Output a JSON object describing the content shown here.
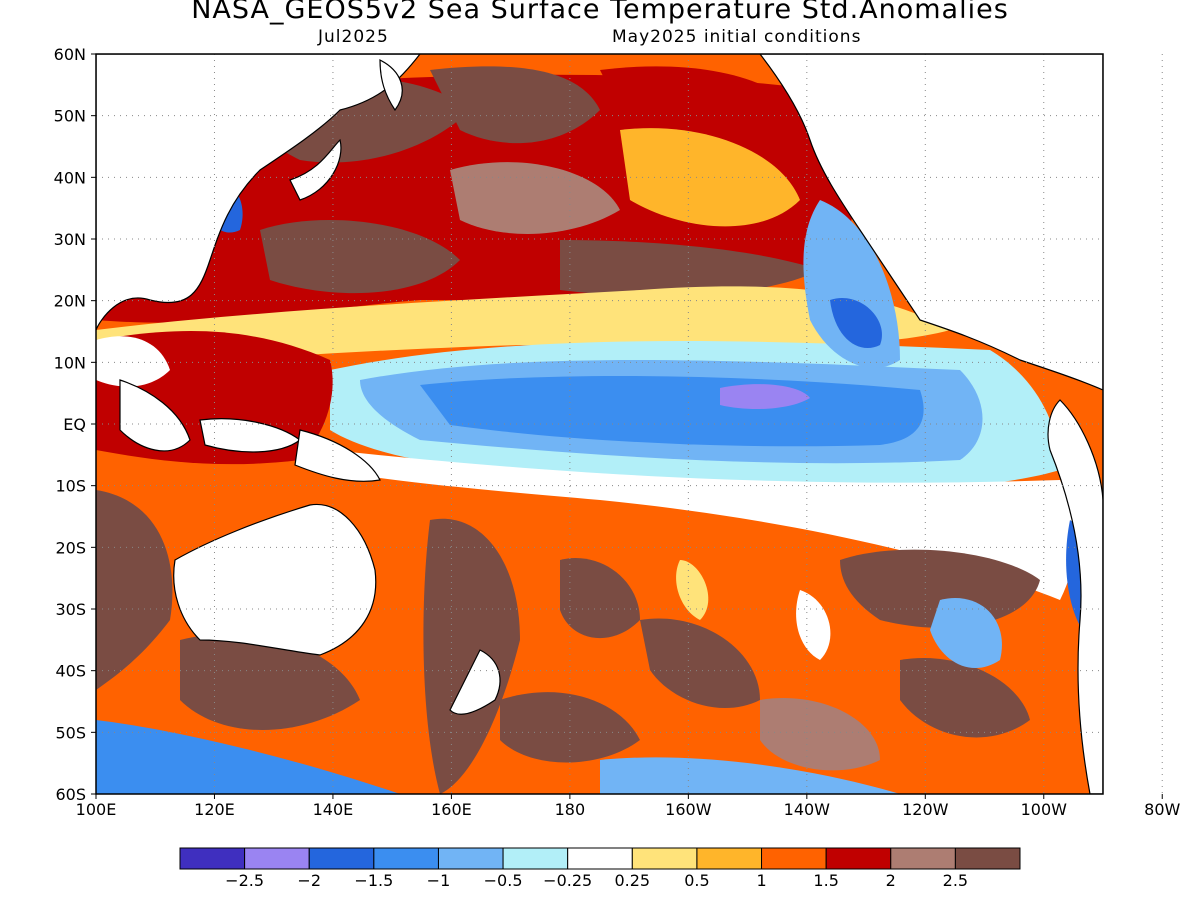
{
  "title": "NASA_GEOS5v2 Sea Surface Temperature Std.Anomalies",
  "subtitle_left": "Jul2025",
  "subtitle_right": "May2025 initial conditions",
  "y_ticks": [
    "60N",
    "50N",
    "40N",
    "30N",
    "20N",
    "10N",
    "EQ",
    "10S",
    "20S",
    "30S",
    "40S",
    "50S",
    "60S"
  ],
  "x_ticks": [
    "100E",
    "120E",
    "140E",
    "160E",
    "180",
    "160W",
    "140W",
    "120W",
    "100W",
    "80W"
  ],
  "colorbar": {
    "colors": [
      "#3f2fbf",
      "#9a84f2",
      "#2466dd",
      "#3b8ef0",
      "#71b4f5",
      "#b2eff8",
      "#ffffff",
      "#ffe37a",
      "#ffb52a",
      "#ff6200",
      "#c00000",
      "#ad7d72",
      "#7a4c43"
    ],
    "labels": [
      "−2.5",
      "−2",
      "−1.5",
      "−1",
      "−0.5",
      "−0.25",
      "0.25",
      "0.5",
      "1",
      "1.5",
      "2",
      "2.5"
    ]
  }
}
